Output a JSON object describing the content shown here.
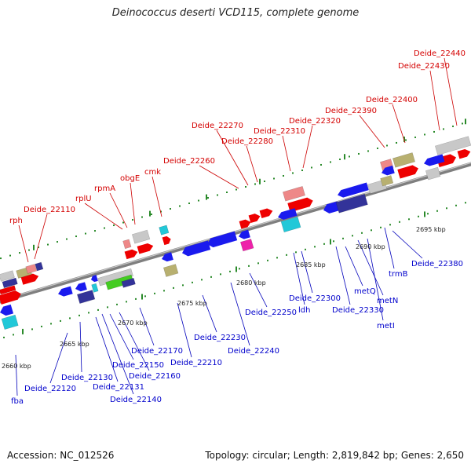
{
  "title": "Deinococcus deserti VCD115, complete genome",
  "footer": {
    "accession": "Accession: NC_012526",
    "summary": "Topology: circular; Length: 2,819,842 bp; Genes: 2,650"
  },
  "scale_ticks": [
    "2660 kbp",
    "2665 kbp",
    "2670 kbp",
    "2675 kbp",
    "2680 kbp",
    "2685 kbp",
    "2690 kbp",
    "2695 kbp"
  ],
  "upper_labels": [
    "rph",
    "Deide_22110",
    "rplU",
    "rpmA",
    "obgE",
    "cmk",
    "Deide_22260",
    "Deide_22270",
    "Deide_22280",
    "Deide_22310",
    "Deide_22320",
    "Deide_22390",
    "Deide_22400",
    "Deide_22430",
    "Deide_22440"
  ],
  "lower_labels": [
    "fba",
    "Deide_22120",
    "Deide_22130",
    "Deide_22131",
    "Deide_22140",
    "Deide_22150",
    "Deide_22160",
    "Deide_22170",
    "Deide_22210",
    "Deide_22230",
    "Deide_22240",
    "Deide_22250",
    "Deide_22300",
    "ldh",
    "Deide_22330",
    "metQ",
    "metN",
    "metI",
    "trmB",
    "Deide_22380"
  ],
  "colors": {
    "forward": "#ee0000",
    "reverse": "#1a1aee",
    "dark_blue": "#333399",
    "light_gray": "#c8c8c8",
    "pink": "#ee8888",
    "olive": "#b8b070",
    "cyan": "#22c8d8",
    "magenta": "#ee22aa",
    "green": "#44cc22",
    "dot_green": "#2a8a2a",
    "backbone": "#888888"
  }
}
